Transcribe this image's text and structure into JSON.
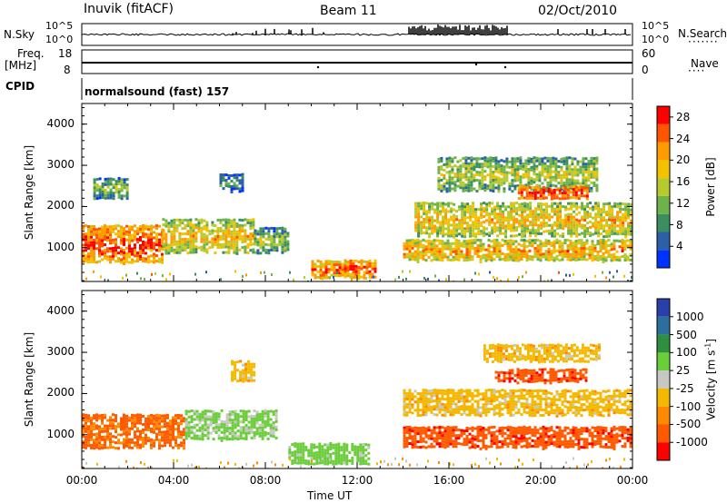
{
  "header": {
    "station": "Inuvik (fitACF)",
    "beam": "Beam 11",
    "date": "02/Oct/2010"
  },
  "status_panels": {
    "nsky_label": "N.Sky",
    "nsky_ticks": [
      "10^5",
      "10^0"
    ],
    "nsearch_label": "N.Search",
    "nsearch_ticks": [
      "10^5",
      "10^0"
    ],
    "freq_label_line1": "Freq.",
    "freq_label_line2": "[MHz]",
    "freq_ticks": [
      "18",
      "8"
    ],
    "nave_label": "Nave",
    "nave_ticks": [
      "60",
      "0"
    ],
    "cpid_label": "CPID",
    "cpid_text": "normalsound (fast) 157"
  },
  "colors": {
    "power_scale": [
      "#0033ff",
      "#2c5fa8",
      "#3b8f5e",
      "#6db34a",
      "#b7c92c",
      "#f2c200",
      "#ff9a00",
      "#ff5500",
      "#ff0000"
    ],
    "velocity_scale": [
      "#2a3faa",
      "#2c6e9c",
      "#2e8f3e",
      "#6acd3a",
      "#c8c8c2",
      "#f5b800",
      "#ff8a00",
      "#ff5a00",
      "#ff0000"
    ]
  },
  "chart_data": [
    {
      "type": "heatmap",
      "title": "",
      "panel": "power",
      "xlabel": "Time UT",
      "ylabel": "Slant Range [km]",
      "xticks": [
        "00:00",
        "04:00",
        "08:00",
        "12:00",
        "16:00",
        "20:00",
        "00:00"
      ],
      "xlim_hours": [
        0,
        24
      ],
      "ylim_km": [
        180,
        4500
      ],
      "yticks": [
        1000,
        2000,
        3000,
        4000
      ],
      "colorbar": {
        "label": "Power [dB]",
        "ticks": [
          4,
          8,
          12,
          16,
          20,
          24,
          28
        ],
        "range": [
          0,
          30
        ]
      },
      "echo_regions": [
        {
          "t0": 0.0,
          "t1": 3.5,
          "r0": 650,
          "r1": 1550,
          "power": 27
        },
        {
          "t0": 3.5,
          "t1": 7.5,
          "r0": 900,
          "r1": 1700,
          "power": 20
        },
        {
          "t0": 7.5,
          "t1": 9.0,
          "r0": 900,
          "r1": 1500,
          "power": 14
        },
        {
          "t0": 0.5,
          "t1": 2.0,
          "r0": 2200,
          "r1": 2700,
          "power": 14
        },
        {
          "t0": 6.0,
          "t1": 7.0,
          "r0": 2400,
          "r1": 2800,
          "power": 9
        },
        {
          "t0": 10.0,
          "t1": 12.8,
          "r0": 300,
          "r1": 700,
          "power": 26
        },
        {
          "t0": 14.0,
          "t1": 24.0,
          "r0": 700,
          "r1": 1200,
          "power": 22
        },
        {
          "t0": 14.5,
          "t1": 24.0,
          "r0": 1300,
          "r1": 2100,
          "power": 20
        },
        {
          "t0": 15.5,
          "t1": 22.5,
          "r0": 2400,
          "r1": 3200,
          "power": 16
        },
        {
          "t0": 19.0,
          "t1": 22.0,
          "r0": 2200,
          "r1": 2500,
          "power": 28
        }
      ]
    },
    {
      "type": "heatmap",
      "title": "",
      "panel": "velocity",
      "xlabel": "Time UT",
      "ylabel": "Slant Range [km]",
      "xticks": [
        "00:00",
        "04:00",
        "08:00",
        "12:00",
        "16:00",
        "20:00",
        "00:00"
      ],
      "xlim_hours": [
        0,
        24
      ],
      "ylim_km": [
        180,
        4500
      ],
      "yticks": [
        1000,
        2000,
        3000,
        4000
      ],
      "colorbar": {
        "label": "Velocity [m s^-1]",
        "ticks": [
          "1000",
          "500",
          "100",
          "25",
          "-25",
          "-100",
          "-500",
          "-1000"
        ]
      },
      "echo_regions": [
        {
          "t0": 0.0,
          "t1": 4.5,
          "r0": 700,
          "r1": 1500,
          "velocity": -120
        },
        {
          "t0": 4.5,
          "t1": 8.5,
          "r0": 900,
          "r1": 1600,
          "velocity": 120
        },
        {
          "t0": 9.0,
          "t1": 12.5,
          "r0": 300,
          "r1": 800,
          "velocity": 150
        },
        {
          "t0": 14.0,
          "t1": 24.0,
          "r0": 1500,
          "r1": 2100,
          "velocity": 0
        },
        {
          "t0": 14.0,
          "t1": 24.0,
          "r0": 700,
          "r1": 1200,
          "velocity": -200
        },
        {
          "t0": 17.5,
          "t1": 22.5,
          "r0": 2800,
          "r1": 3200,
          "velocity": 0
        },
        {
          "t0": 18.0,
          "t1": 22.0,
          "r0": 2300,
          "r1": 2600,
          "velocity": -200
        },
        {
          "t0": 6.5,
          "t1": 7.5,
          "r0": 2300,
          "r1": 2800,
          "velocity": 0
        }
      ]
    }
  ]
}
